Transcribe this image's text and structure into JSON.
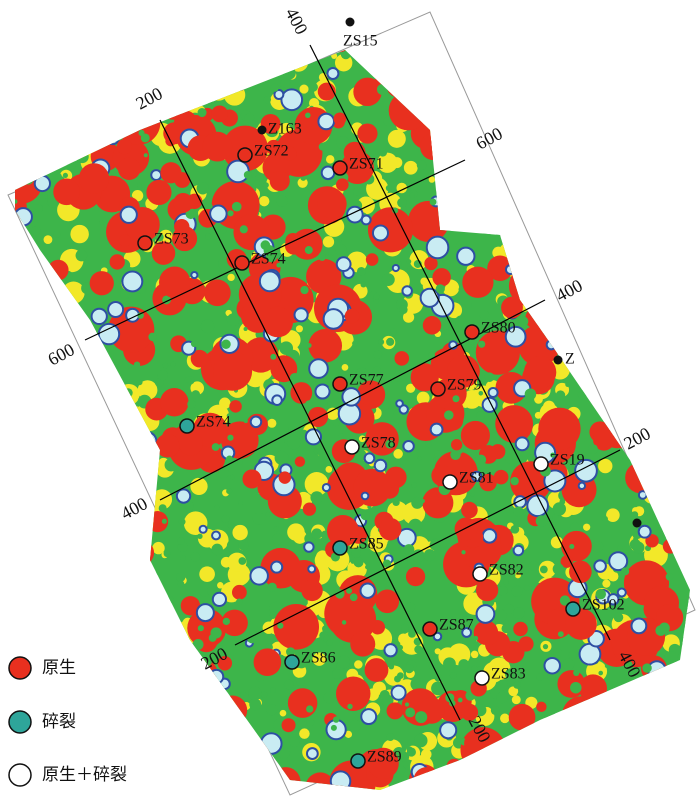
{
  "legend": [
    {
      "label": "原生",
      "wells": [
        "ZS72",
        "ZS71",
        "ZS73",
        "ZS74",
        "ZS80",
        "ZS77",
        "ZS79",
        "ZS87"
      ]
    },
    {
      "label": "碎裂",
      "wells": [
        "ZS74",
        "ZS85",
        "ZS102",
        "ZS86",
        "ZS89"
      ]
    },
    {
      "label": "原生＋碎裂",
      "wells": [
        "ZS78",
        "ZS81",
        "ZS19",
        "ZS82",
        "ZS83"
      ]
    }
  ],
  "other_wells": [
    "ZS15",
    "Z163",
    "Z"
  ],
  "grid_labels": [
    400,
    200,
    600,
    400,
    200,
    600,
    400,
    200,
    200,
    400
  ]
}
